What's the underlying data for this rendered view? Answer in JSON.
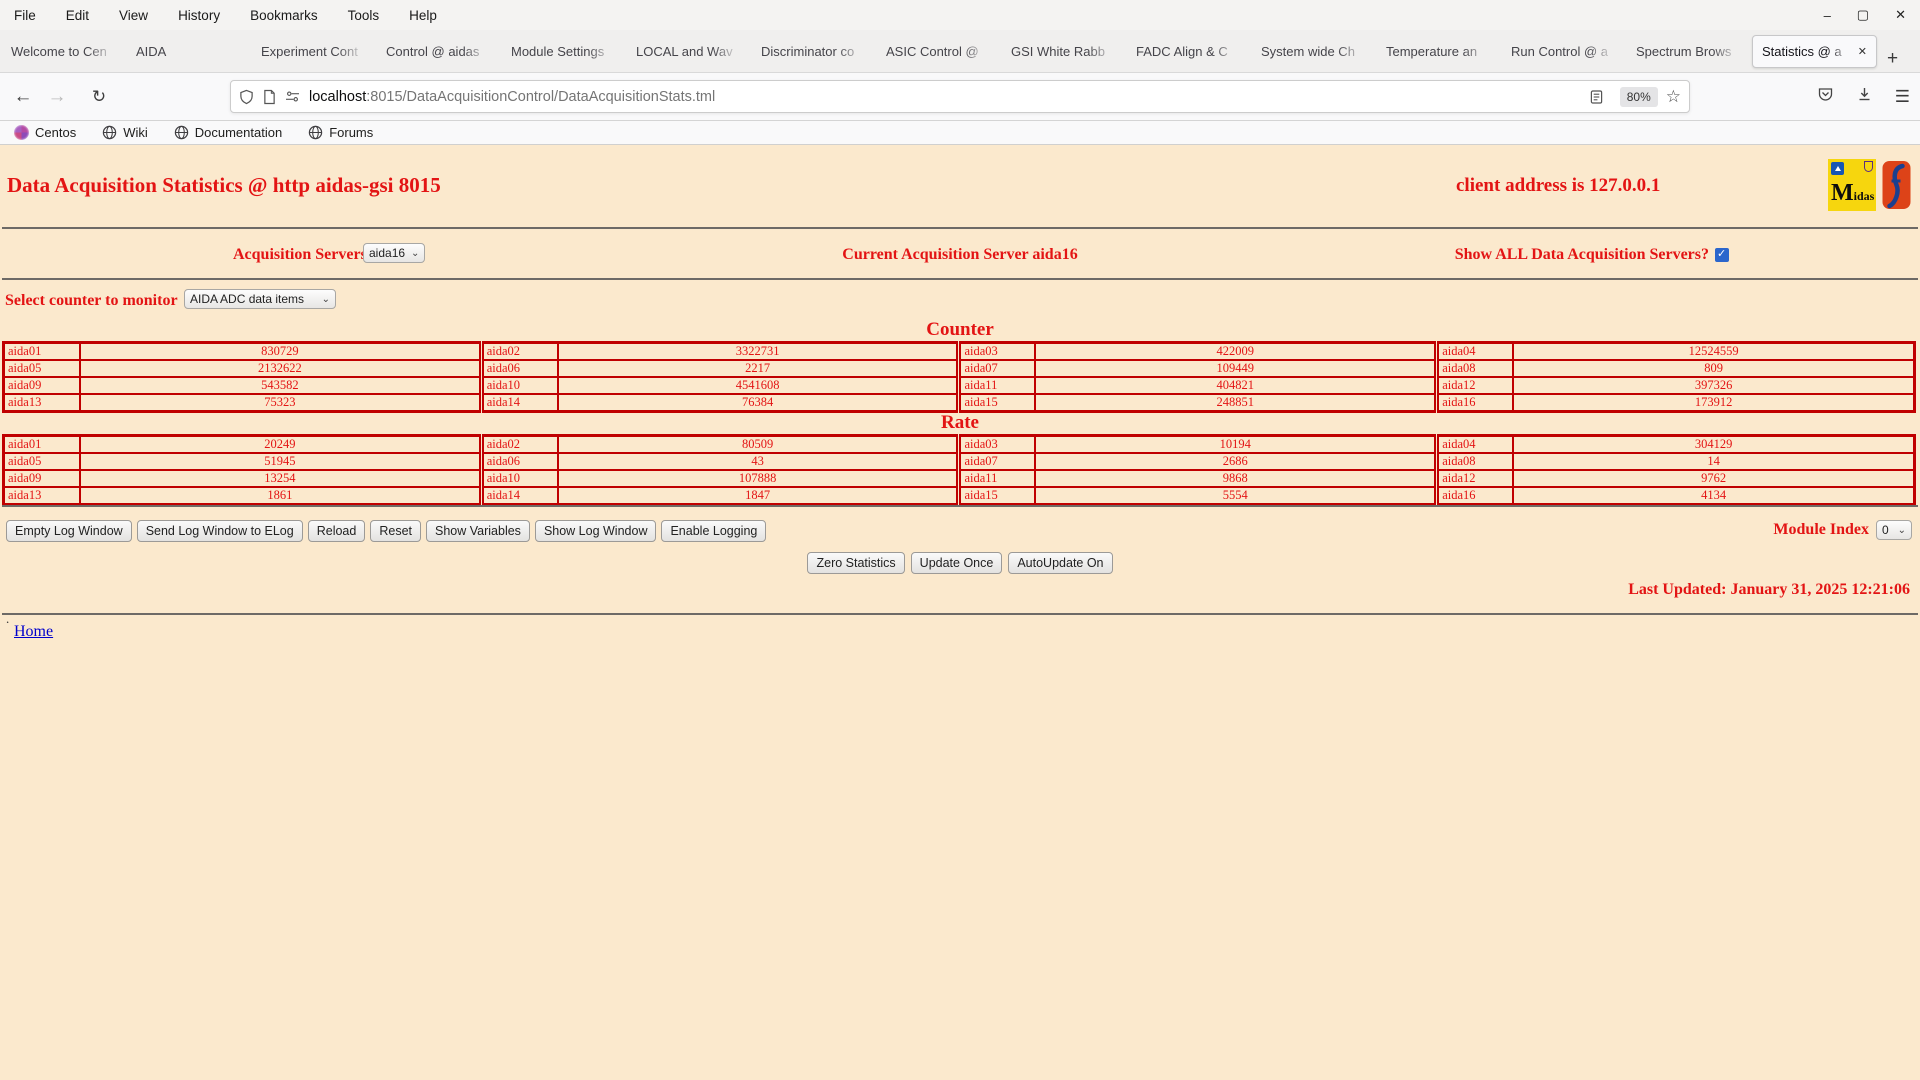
{
  "browser": {
    "menu": [
      "File",
      "Edit",
      "View",
      "History",
      "Bookmarks",
      "Tools",
      "Help"
    ],
    "window_controls": {
      "minimize": "–",
      "maximize": "▢",
      "close": "✕"
    },
    "tabs": [
      {
        "label": "Welcome to Cen"
      },
      {
        "label": "AIDA"
      },
      {
        "label": "Experiment Cont"
      },
      {
        "label": "Control @ aidas"
      },
      {
        "label": "Module Settings"
      },
      {
        "label": "LOCAL and Wav"
      },
      {
        "label": "Discriminator co"
      },
      {
        "label": "ASIC Control @"
      },
      {
        "label": "GSI White Rabb"
      },
      {
        "label": "FADC Align & C"
      },
      {
        "label": "System wide Ch"
      },
      {
        "label": "Temperature an"
      },
      {
        "label": "Run Control @ a"
      },
      {
        "label": "Spectrum Brows"
      },
      {
        "label": "Statistics @ a",
        "active": true
      }
    ],
    "tab_close": "✕",
    "new_tab": "+",
    "nav": {
      "back": "←",
      "forward": "→",
      "reload": "↻"
    },
    "url_host": "localhost",
    "url_rest": ":8015/DataAcquisitionControl/DataAcquisitionStats.tml",
    "zoom_chip": "80%",
    "star": "☆",
    "menu_button": "☰",
    "bookmarks": [
      {
        "label": "Centos",
        "icon": "centos"
      },
      {
        "label": "Wiki",
        "icon": "globe"
      },
      {
        "label": "Documentation",
        "icon": "globe"
      },
      {
        "label": "Forums",
        "icon": "globe"
      }
    ]
  },
  "page": {
    "title": "Data Acquisition Statistics @ http aidas-gsi 8015",
    "client_address": "client address is 127.0.0.1",
    "logo_midas_text": "Midas",
    "acq_servers_label": "Acquisition Servers",
    "acq_server_value": "aida16",
    "current_server": "Current Acquisition Server aida16",
    "show_all_label": "Show ALL Data Acquisition Servers?",
    "show_all_checked": true,
    "counter_monitor_label": "Select counter to monitor",
    "counter_monitor_value": "AIDA ADC data items",
    "counter_heading": "Counter",
    "rate_heading": "Rate",
    "counter_table": {
      "rows": [
        [
          [
            "aida01",
            "830729"
          ],
          [
            "aida02",
            "3322731"
          ],
          [
            "aida03",
            "422009"
          ],
          [
            "aida04",
            "12524559"
          ]
        ],
        [
          [
            "aida05",
            "2132622"
          ],
          [
            "aida06",
            "2217"
          ],
          [
            "aida07",
            "109449"
          ],
          [
            "aida08",
            "809"
          ]
        ],
        [
          [
            "aida09",
            "543582"
          ],
          [
            "aida10",
            "4541608"
          ],
          [
            "aida11",
            "404821"
          ],
          [
            "aida12",
            "397326"
          ]
        ],
        [
          [
            "aida13",
            "75323"
          ],
          [
            "aida14",
            "76384"
          ],
          [
            "aida15",
            "248851"
          ],
          [
            "aida16",
            "173912"
          ]
        ]
      ]
    },
    "rate_table": {
      "rows": [
        [
          [
            "aida01",
            "20249"
          ],
          [
            "aida02",
            "80509"
          ],
          [
            "aida03",
            "10194"
          ],
          [
            "aida04",
            "304129"
          ]
        ],
        [
          [
            "aida05",
            "51945"
          ],
          [
            "aida06",
            "43"
          ],
          [
            "aida07",
            "2686"
          ],
          [
            "aida08",
            "14"
          ]
        ],
        [
          [
            "aida09",
            "13254"
          ],
          [
            "aida10",
            "107888"
          ],
          [
            "aida11",
            "9868"
          ],
          [
            "aida12",
            "9762"
          ]
        ],
        [
          [
            "aida13",
            "1861"
          ],
          [
            "aida14",
            "1847"
          ],
          [
            "aida15",
            "5554"
          ],
          [
            "aida16",
            "4134"
          ]
        ]
      ]
    },
    "log_buttons": [
      "Empty Log Window",
      "Send Log Window to ELog",
      "Reload",
      "Reset",
      "Show Variables",
      "Show Log Window",
      "Enable Logging"
    ],
    "module_index_label": "Module Index",
    "module_index_value": "0",
    "stat_buttons": [
      "Zero Statistics",
      "Update Once",
      "AutoUpdate On"
    ],
    "last_updated": "Last Updated: January 31, 2025 12:21:06",
    "footer_dot": ".",
    "home_link": "Home"
  },
  "colors": {
    "page_bg": "#FBE9CD",
    "red_text": "#E31414",
    "table_border": "#C00000",
    "link": "#0000CC"
  }
}
